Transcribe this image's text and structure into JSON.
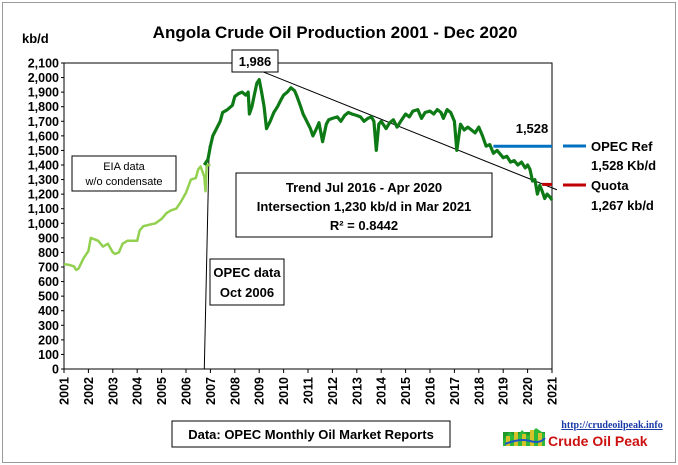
{
  "chart_data": {
    "type": "line",
    "title": "Angola Crude Oil Production  2001 - Dec 2020",
    "ylabel": "kb/d",
    "ylim": [
      0,
      2100
    ],
    "ystep": 100,
    "xlim": [
      2001,
      2021
    ],
    "x_ticks": [
      "2001",
      "2002",
      "2003",
      "2004",
      "2005",
      "2006",
      "2007",
      "2008",
      "2009",
      "2010",
      "2011",
      "2012",
      "2013",
      "2014",
      "2015",
      "2016",
      "2017",
      "2018",
      "2019",
      "2020",
      "2021"
    ],
    "series": [
      {
        "name": "EIA data w/o condensate",
        "color": "#92d050",
        "points": [
          [
            2001.0,
            720
          ],
          [
            2001.2,
            715
          ],
          [
            2001.4,
            705
          ],
          [
            2001.5,
            680
          ],
          [
            2001.6,
            690
          ],
          [
            2001.8,
            760
          ],
          [
            2002.0,
            810
          ],
          [
            2002.1,
            900
          ],
          [
            2002.25,
            890
          ],
          [
            2002.4,
            880
          ],
          [
            2002.6,
            840
          ],
          [
            2002.8,
            860
          ],
          [
            2003.0,
            800
          ],
          [
            2003.1,
            790
          ],
          [
            2003.25,
            800
          ],
          [
            2003.4,
            860
          ],
          [
            2003.6,
            880
          ],
          [
            2003.8,
            880
          ],
          [
            2004.0,
            880
          ],
          [
            2004.1,
            950
          ],
          [
            2004.25,
            980
          ],
          [
            2004.5,
            990
          ],
          [
            2004.75,
            1000
          ],
          [
            2005.0,
            1030
          ],
          [
            2005.2,
            1070
          ],
          [
            2005.4,
            1090
          ],
          [
            2005.6,
            1100
          ],
          [
            2005.8,
            1150
          ],
          [
            2006.0,
            1210
          ],
          [
            2006.2,
            1300
          ],
          [
            2006.4,
            1310
          ],
          [
            2006.5,
            1370
          ],
          [
            2006.6,
            1390
          ],
          [
            2006.75,
            1320
          ],
          [
            2006.8,
            1220
          ],
          [
            2006.85,
            1400
          ],
          [
            2007.0,
            1400
          ]
        ]
      },
      {
        "name": "OPEC data",
        "color": "#0e7a16",
        "points": [
          [
            2006.75,
            1400
          ],
          [
            2006.9,
            1440
          ],
          [
            2007.0,
            1530
          ],
          [
            2007.1,
            1600
          ],
          [
            2007.25,
            1650
          ],
          [
            2007.4,
            1700
          ],
          [
            2007.5,
            1760
          ],
          [
            2007.7,
            1780
          ],
          [
            2007.9,
            1810
          ],
          [
            2008.0,
            1870
          ],
          [
            2008.15,
            1890
          ],
          [
            2008.3,
            1900
          ],
          [
            2008.45,
            1880
          ],
          [
            2008.55,
            1900
          ],
          [
            2008.6,
            1750
          ],
          [
            2008.7,
            1800
          ],
          [
            2008.8,
            1880
          ],
          [
            2008.9,
            1960
          ],
          [
            2009.0,
            1986
          ],
          [
            2009.1,
            1900
          ],
          [
            2009.2,
            1800
          ],
          [
            2009.3,
            1650
          ],
          [
            2009.45,
            1700
          ],
          [
            2009.6,
            1760
          ],
          [
            2009.75,
            1800
          ],
          [
            2009.9,
            1850
          ],
          [
            2010.0,
            1880
          ],
          [
            2010.15,
            1900
          ],
          [
            2010.3,
            1930
          ],
          [
            2010.45,
            1910
          ],
          [
            2010.55,
            1870
          ],
          [
            2010.7,
            1800
          ],
          [
            2010.8,
            1750
          ],
          [
            2010.95,
            1700
          ],
          [
            2011.1,
            1650
          ],
          [
            2011.2,
            1600
          ],
          [
            2011.35,
            1650
          ],
          [
            2011.45,
            1690
          ],
          [
            2011.6,
            1560
          ],
          [
            2011.75,
            1680
          ],
          [
            2011.85,
            1710
          ],
          [
            2012.0,
            1720
          ],
          [
            2012.2,
            1730
          ],
          [
            2012.35,
            1700
          ],
          [
            2012.5,
            1740
          ],
          [
            2012.65,
            1760
          ],
          [
            2012.8,
            1750
          ],
          [
            2013.0,
            1740
          ],
          [
            2013.15,
            1730
          ],
          [
            2013.3,
            1700
          ],
          [
            2013.45,
            1720
          ],
          [
            2013.6,
            1730
          ],
          [
            2013.7,
            1700
          ],
          [
            2013.8,
            1500
          ],
          [
            2013.9,
            1680
          ],
          [
            2014.0,
            1700
          ],
          [
            2014.2,
            1650
          ],
          [
            2014.35,
            1690
          ],
          [
            2014.5,
            1710
          ],
          [
            2014.65,
            1660
          ],
          [
            2014.8,
            1700
          ],
          [
            2015.0,
            1750
          ],
          [
            2015.15,
            1730
          ],
          [
            2015.3,
            1770
          ],
          [
            2015.5,
            1780
          ],
          [
            2015.65,
            1720
          ],
          [
            2015.8,
            1760
          ],
          [
            2016.0,
            1770
          ],
          [
            2016.15,
            1750
          ],
          [
            2016.3,
            1780
          ],
          [
            2016.45,
            1760
          ],
          [
            2016.55,
            1720
          ],
          [
            2016.7,
            1780
          ],
          [
            2016.85,
            1760
          ],
          [
            2017.0,
            1700
          ],
          [
            2017.1,
            1500
          ],
          [
            2017.25,
            1680
          ],
          [
            2017.4,
            1640
          ],
          [
            2017.55,
            1660
          ],
          [
            2017.7,
            1640
          ],
          [
            2017.85,
            1620
          ],
          [
            2018.0,
            1660
          ],
          [
            2018.15,
            1600
          ],
          [
            2018.3,
            1530
          ],
          [
            2018.45,
            1540
          ],
          [
            2018.6,
            1480
          ],
          [
            2018.75,
            1500
          ],
          [
            2018.9,
            1470
          ],
          [
            2019.0,
            1450
          ],
          [
            2019.15,
            1460
          ],
          [
            2019.3,
            1420
          ],
          [
            2019.45,
            1430
          ],
          [
            2019.6,
            1400
          ],
          [
            2019.75,
            1420
          ],
          [
            2019.9,
            1380
          ],
          [
            2020.0,
            1400
          ],
          [
            2020.1,
            1370
          ],
          [
            2020.2,
            1290
          ],
          [
            2020.3,
            1300
          ],
          [
            2020.4,
            1200
          ],
          [
            2020.5,
            1260
          ],
          [
            2020.6,
            1220
          ],
          [
            2020.7,
            1170
          ],
          [
            2020.8,
            1200
          ],
          [
            2020.92,
            1180
          ],
          [
            2021.0,
            1160
          ]
        ]
      },
      {
        "name": "OPEC Ref",
        "color": "#0070c0",
        "points": [
          [
            2018.6,
            1528
          ],
          [
            2021.0,
            1528
          ]
        ]
      },
      {
        "name": "Quota",
        "color": "#c00000",
        "points": [
          [
            2020.6,
            1267
          ],
          [
            2021.0,
            1267
          ]
        ]
      }
    ],
    "trend_line": {
      "color": "#000000",
      "points": [
        [
          2009.0,
          2050
        ],
        [
          2021.2,
          1230
        ]
      ]
    },
    "opec_start_line": {
      "color": "#000000",
      "points": [
        [
          2006.75,
          0
        ],
        [
          2006.95,
          1530
        ]
      ]
    },
    "annotations": {
      "peak": "1,986",
      "opec_ref_value": "1,528",
      "eia_label": [
        "EIA data",
        "w/o condensate"
      ],
      "opec_data_label": [
        "OPEC  data",
        "Oct 2006"
      ],
      "trend_label": [
        "Trend Jul 2016 - Apr 2020",
        "Intersection 1,230 kb/d in Mar 2021",
        "R² = 0.8442"
      ],
      "source": "Data: OPEC Monthly Oil Market Reports"
    },
    "legend": [
      {
        "label": "OPEC Ref",
        "value": "1,528 Kb/d",
        "color": "#0070c0"
      },
      {
        "label": "Quota",
        "value": "1,267 kb/d",
        "color": "#c00000"
      }
    ],
    "grid": false
  },
  "branding": {
    "url": "http://crudeoilpeak.info",
    "name": "Crude Oil Peak"
  }
}
